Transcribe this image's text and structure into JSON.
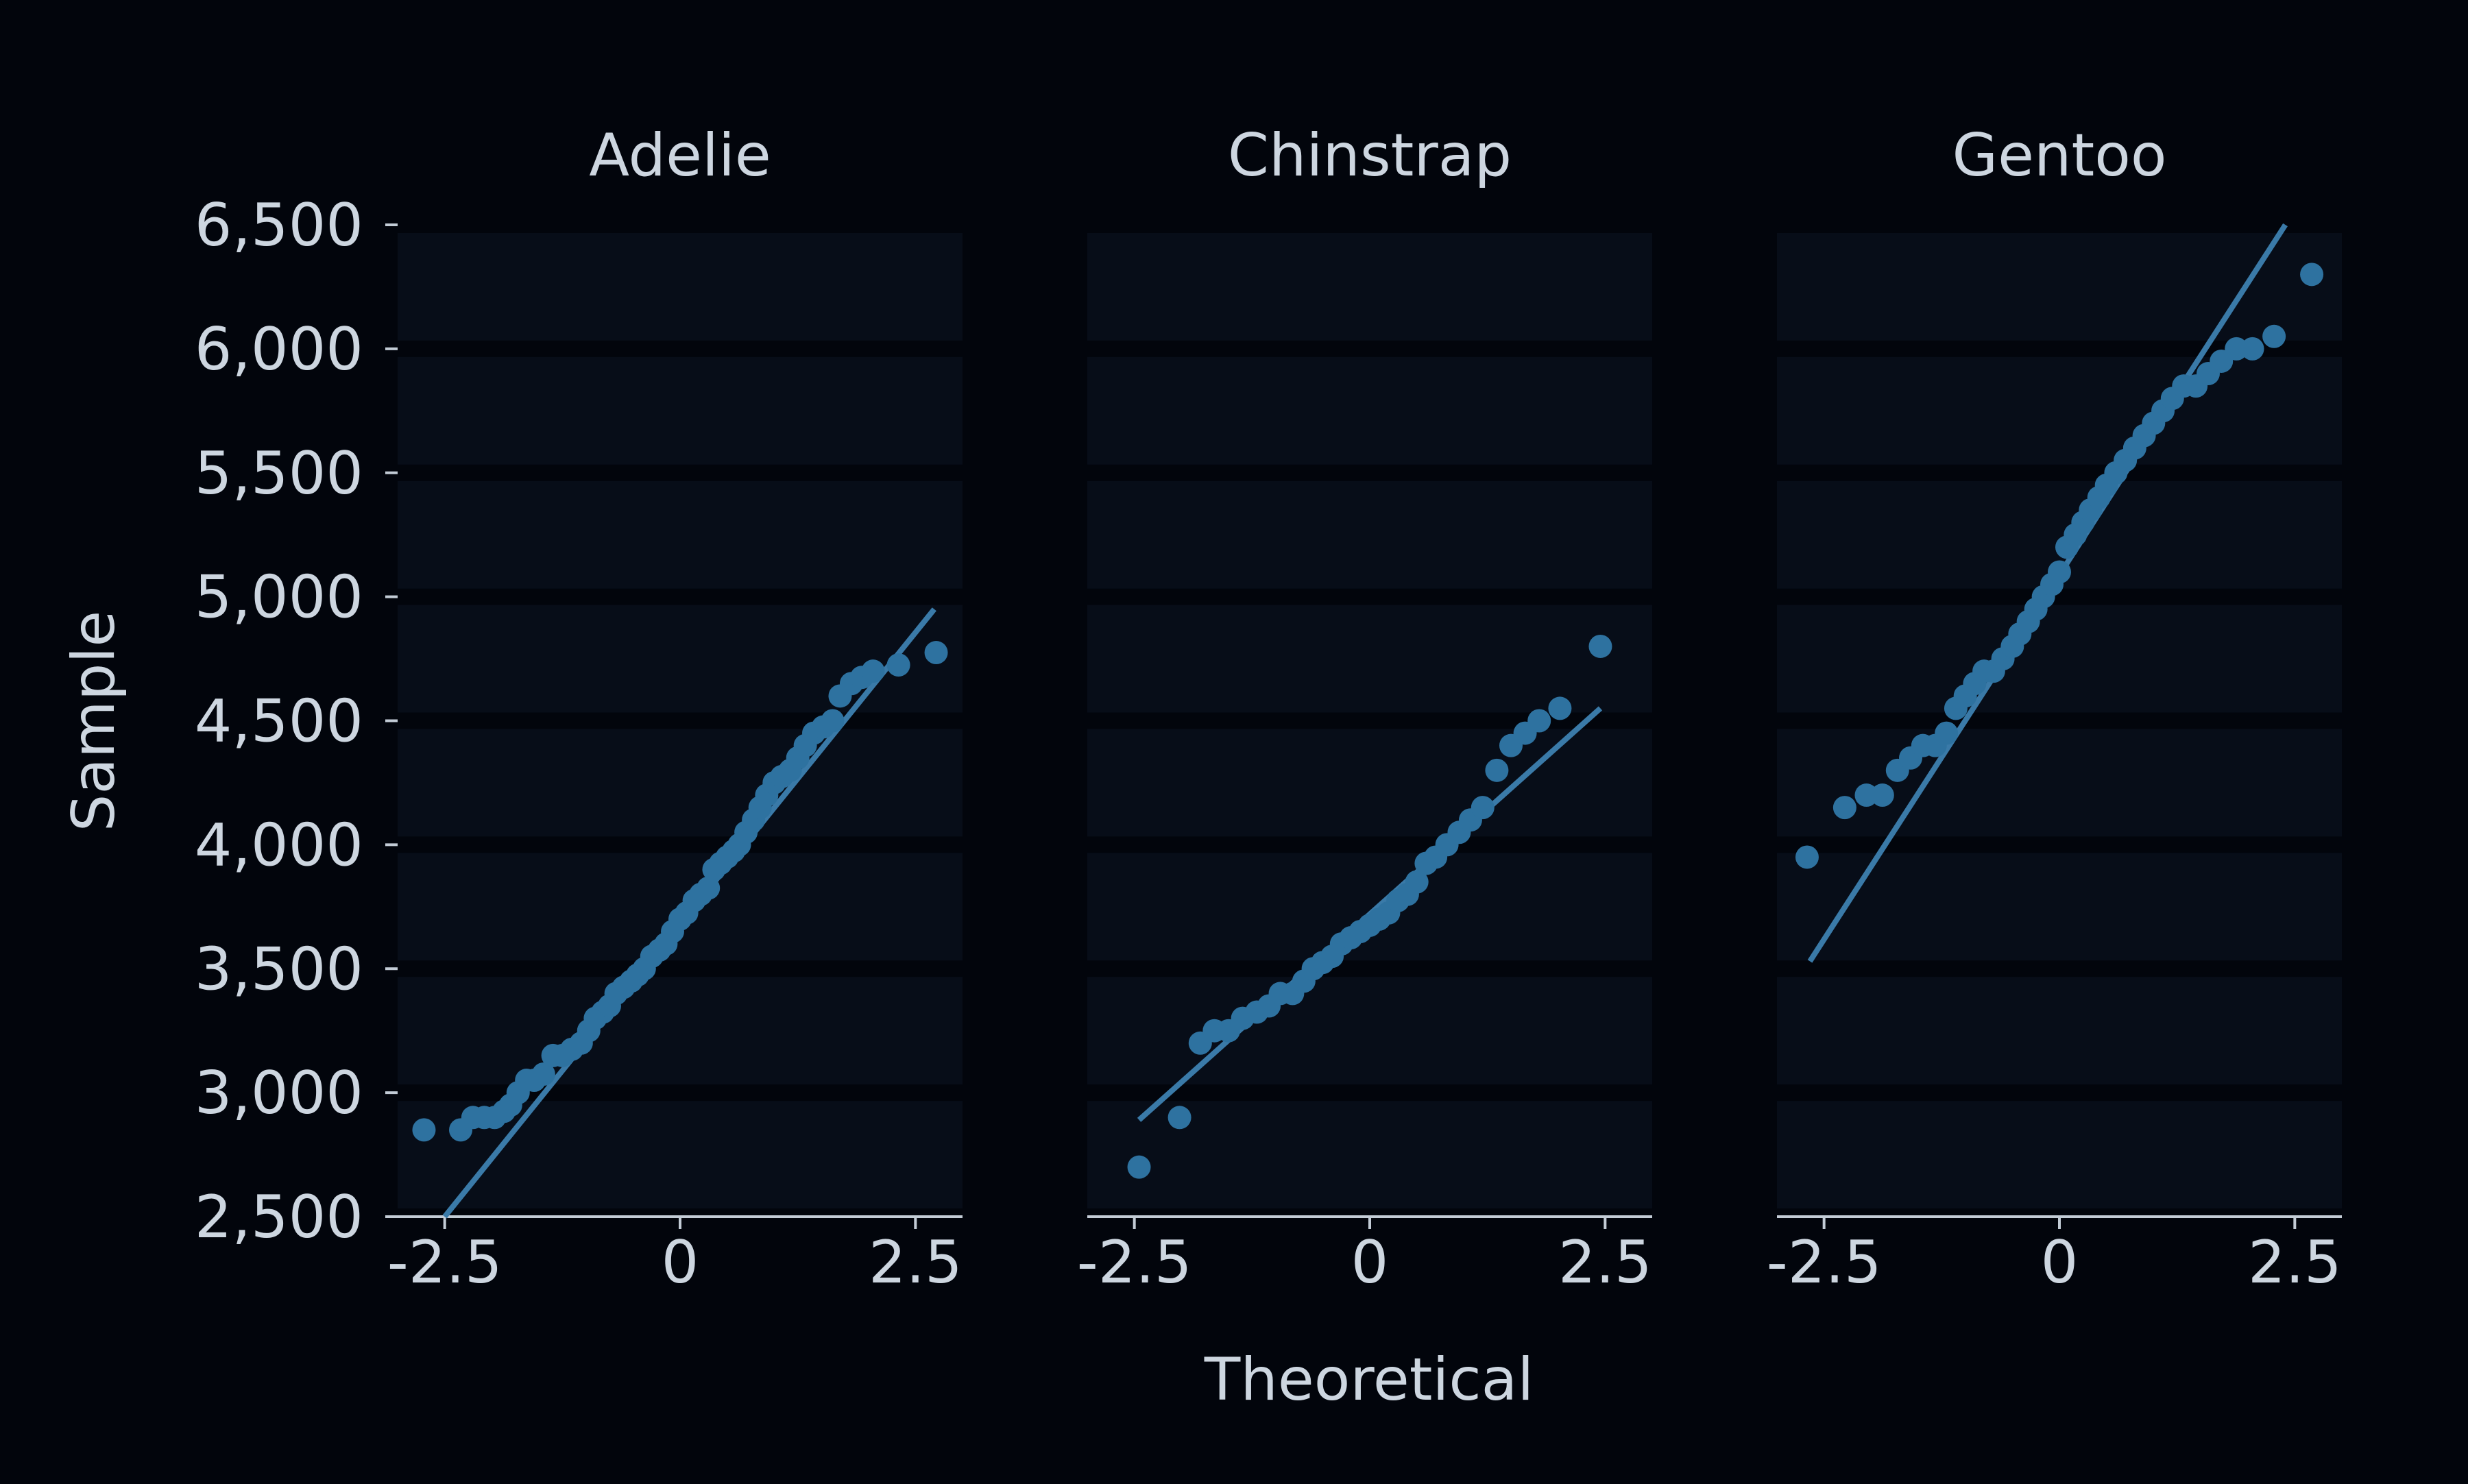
{
  "chart_data": {
    "type": "scatter",
    "subtype": "qq-plot-facets",
    "xlabel": "Theoretical",
    "ylabel": "Sample",
    "xlim": [
      -3.0,
      3.0
    ],
    "ylim": [
      2500,
      6500
    ],
    "xticks": [
      -2.5,
      0,
      2.5
    ],
    "xtick_labels": [
      "-2.5",
      "0",
      "2.5"
    ],
    "yticks": [
      2500,
      3000,
      3500,
      4000,
      4500,
      5000,
      5500,
      6000,
      6500
    ],
    "ytick_labels": [
      "2,500",
      "3,000",
      "3,500",
      "4,000",
      "4,500",
      "5,000",
      "5,500",
      "6,000",
      "6,500"
    ],
    "grid": "horizontal bands",
    "colors": {
      "background": "#02050c",
      "panel": "#070d18",
      "marker": "#2e72a0",
      "line": "#3a7aa8",
      "text": "#cdd6e0",
      "axis": "#c3ccd6"
    },
    "panels": [
      {
        "title": "Adelie",
        "fit_line": [
          [
            -2.5,
            2500
          ],
          [
            2.7,
            4950
          ]
        ],
        "points": [
          [
            -2.72,
            2850
          ],
          [
            -2.33,
            2850
          ],
          [
            -2.2,
            2900
          ],
          [
            -2.08,
            2900
          ],
          [
            -1.97,
            2900
          ],
          [
            -1.87,
            2925
          ],
          [
            -1.8,
            2950
          ],
          [
            -1.72,
            3000
          ],
          [
            -1.63,
            3050
          ],
          [
            -1.55,
            3050
          ],
          [
            -1.45,
            3075
          ],
          [
            -1.35,
            3150
          ],
          [
            -1.25,
            3150
          ],
          [
            -1.15,
            3175
          ],
          [
            -1.05,
            3200
          ],
          [
            -0.97,
            3250
          ],
          [
            -0.9,
            3300
          ],
          [
            -0.82,
            3325
          ],
          [
            -0.75,
            3350
          ],
          [
            -0.68,
            3400
          ],
          [
            -0.6,
            3425
          ],
          [
            -0.52,
            3450
          ],
          [
            -0.45,
            3475
          ],
          [
            -0.38,
            3500
          ],
          [
            -0.3,
            3550
          ],
          [
            -0.22,
            3575
          ],
          [
            -0.15,
            3600
          ],
          [
            -0.08,
            3650
          ],
          [
            0.0,
            3700
          ],
          [
            0.07,
            3725
          ],
          [
            0.15,
            3775
          ],
          [
            0.22,
            3800
          ],
          [
            0.3,
            3825
          ],
          [
            0.36,
            3900
          ],
          [
            0.43,
            3925
          ],
          [
            0.5,
            3950
          ],
          [
            0.57,
            3975
          ],
          [
            0.63,
            4000
          ],
          [
            0.7,
            4050
          ],
          [
            0.78,
            4100
          ],
          [
            0.85,
            4150
          ],
          [
            0.92,
            4200
          ],
          [
            1.0,
            4250
          ],
          [
            1.08,
            4275
          ],
          [
            1.17,
            4300
          ],
          [
            1.25,
            4350
          ],
          [
            1.33,
            4400
          ],
          [
            1.42,
            4450
          ],
          [
            1.52,
            4475
          ],
          [
            1.62,
            4500
          ],
          [
            1.7,
            4600
          ],
          [
            1.82,
            4650
          ],
          [
            1.93,
            4675
          ],
          [
            2.05,
            4700
          ],
          [
            2.32,
            4725
          ],
          [
            2.72,
            4775
          ]
        ]
      },
      {
        "title": "Chinstrap",
        "fit_line": [
          [
            -2.45,
            2890
          ],
          [
            2.45,
            4550
          ]
        ],
        "points": [
          [
            -2.45,
            2700
          ],
          [
            -2.02,
            2900
          ],
          [
            -1.8,
            3200
          ],
          [
            -1.65,
            3250
          ],
          [
            -1.5,
            3250
          ],
          [
            -1.35,
            3300
          ],
          [
            -1.2,
            3325
          ],
          [
            -1.07,
            3350
          ],
          [
            -0.95,
            3400
          ],
          [
            -0.82,
            3400
          ],
          [
            -0.7,
            3450
          ],
          [
            -0.6,
            3500
          ],
          [
            -0.5,
            3525
          ],
          [
            -0.4,
            3550
          ],
          [
            -0.3,
            3600
          ],
          [
            -0.2,
            3625
          ],
          [
            -0.1,
            3650
          ],
          [
            0.0,
            3675
          ],
          [
            0.1,
            3700
          ],
          [
            0.2,
            3725
          ],
          [
            0.3,
            3775
          ],
          [
            0.4,
            3800
          ],
          [
            0.5,
            3850
          ],
          [
            0.6,
            3925
          ],
          [
            0.7,
            3950
          ],
          [
            0.82,
            4000
          ],
          [
            0.95,
            4050
          ],
          [
            1.07,
            4100
          ],
          [
            1.2,
            4150
          ],
          [
            1.35,
            4300
          ],
          [
            1.5,
            4400
          ],
          [
            1.65,
            4450
          ],
          [
            1.8,
            4500
          ],
          [
            2.02,
            4550
          ],
          [
            2.45,
            4800
          ]
        ]
      },
      {
        "title": "Gentoo",
        "fit_line": [
          [
            -2.65,
            3530
          ],
          [
            2.4,
            6500
          ]
        ],
        "points": [
          [
            -2.68,
            3950
          ],
          [
            -2.28,
            4150
          ],
          [
            -2.05,
            4200
          ],
          [
            -1.88,
            4200
          ],
          [
            -1.72,
            4300
          ],
          [
            -1.58,
            4350
          ],
          [
            -1.45,
            4400
          ],
          [
            -1.32,
            4400
          ],
          [
            -1.2,
            4450
          ],
          [
            -1.1,
            4550
          ],
          [
            -1.0,
            4600
          ],
          [
            -0.9,
            4650
          ],
          [
            -0.8,
            4700
          ],
          [
            -0.7,
            4700
          ],
          [
            -0.6,
            4750
          ],
          [
            -0.5,
            4800
          ],
          [
            -0.42,
            4850
          ],
          [
            -0.33,
            4900
          ],
          [
            -0.25,
            4950
          ],
          [
            -0.17,
            5000
          ],
          [
            -0.08,
            5050
          ],
          [
            0.0,
            5100
          ],
          [
            0.08,
            5200
          ],
          [
            0.17,
            5250
          ],
          [
            0.25,
            5300
          ],
          [
            0.33,
            5350
          ],
          [
            0.42,
            5400
          ],
          [
            0.5,
            5450
          ],
          [
            0.6,
            5500
          ],
          [
            0.7,
            5550
          ],
          [
            0.8,
            5600
          ],
          [
            0.9,
            5650
          ],
          [
            1.0,
            5700
          ],
          [
            1.1,
            5750
          ],
          [
            1.2,
            5800
          ],
          [
            1.32,
            5850
          ],
          [
            1.45,
            5850
          ],
          [
            1.58,
            5900
          ],
          [
            1.72,
            5950
          ],
          [
            1.88,
            6000
          ],
          [
            2.05,
            6000
          ],
          [
            2.28,
            6050
          ],
          [
            2.68,
            6300
          ]
        ]
      }
    ]
  }
}
